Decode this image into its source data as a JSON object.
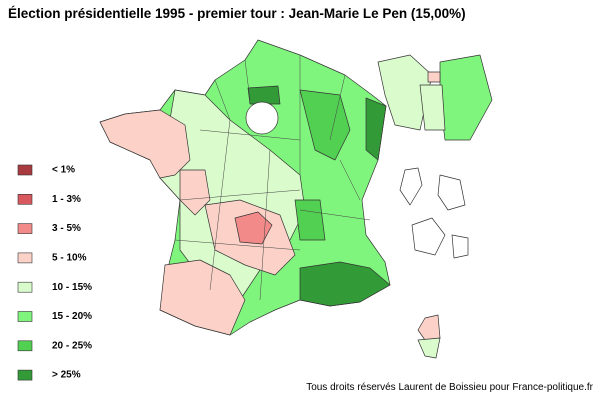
{
  "title": "Élection présidentielle 1995 - premier tour : Jean-Marie Le Pen (15,00%)",
  "legend": {
    "items": [
      {
        "label": "< 1%",
        "color": "#a83a40"
      },
      {
        "label": "1 - 3%",
        "color": "#d8585e"
      },
      {
        "label": "3 - 5%",
        "color": "#f28a8a"
      },
      {
        "label": "5 - 10%",
        "color": "#fcd2c8"
      },
      {
        "label": "10 - 15%",
        "color": "#dafccc"
      },
      {
        "label": "15 - 20%",
        "color": "#80f57e"
      },
      {
        "label": "20 - 25%",
        "color": "#52d052"
      },
      {
        "label": "> 25%",
        "color": "#339a38"
      }
    ]
  },
  "credit": "Tous droits réservés Laurent de Boissieu pour France-politique.fr"
}
